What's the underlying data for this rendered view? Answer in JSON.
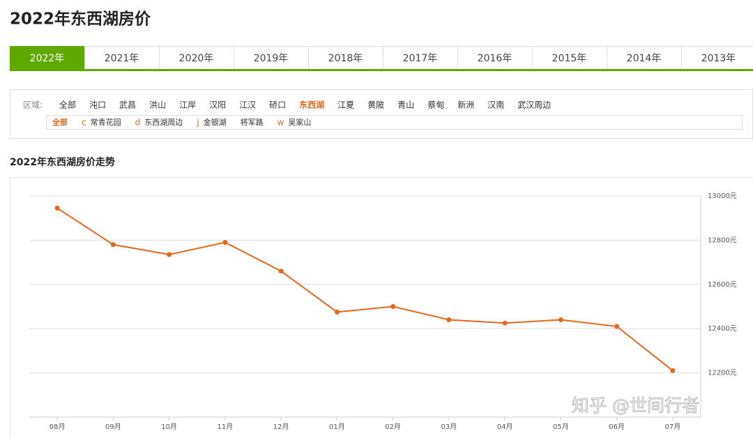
{
  "header": {
    "title": "2022年东西湖房价"
  },
  "tabs": [
    "2022年",
    "2021年",
    "2020年",
    "2019年",
    "2018年",
    "2017年",
    "2016年",
    "2015年",
    "2014年",
    "2013年"
  ],
  "active_tab": 0,
  "filter": {
    "label": "区域:",
    "districts": [
      "全部",
      "沌口",
      "武昌",
      "洪山",
      "江岸",
      "汉阳",
      "江汉",
      "硚口",
      "东西湖",
      "江夏",
      "黄陂",
      "青山",
      "蔡甸",
      "新洲",
      "汉南",
      "武汉周边"
    ],
    "active_district": 8,
    "sub_areas": [
      {
        "name": "全部"
      },
      {
        "letter": "c",
        "name": "常青花园"
      },
      {
        "letter": "d",
        "name": "东西湖周边"
      },
      {
        "letter": "j",
        "name": "金银湖"
      },
      {
        "name": "将军路"
      },
      {
        "letter": "w",
        "name": "吴家山"
      }
    ],
    "active_sub_area": 0
  },
  "chart_data": {
    "type": "line",
    "title": "2022年东西湖房价走势",
    "categories": [
      "08月",
      "09月",
      "10月",
      "11月",
      "12月",
      "01月",
      "02月",
      "03月",
      "04月",
      "05月",
      "06月",
      "07月"
    ],
    "values": [
      12945,
      12780,
      12735,
      12790,
      12660,
      12475,
      12500,
      12440,
      12425,
      12440,
      12410,
      12210
    ],
    "color": "#e8651a",
    "ylim": [
      12000,
      13000
    ],
    "yticks": [
      {
        "value": 12200,
        "label": "12200元"
      },
      {
        "value": 12400,
        "label": "12400元"
      },
      {
        "value": 12600,
        "label": "12600元"
      },
      {
        "value": 12800,
        "label": "12800元"
      },
      {
        "value": 13000,
        "label": "13000元"
      }
    ],
    "grid": true
  },
  "watermark": "知乎 @世间行者"
}
